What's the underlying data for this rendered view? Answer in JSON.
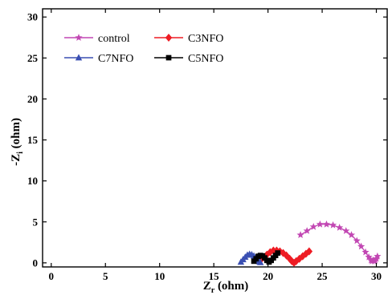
{
  "chart_data": {
    "type": "scatter",
    "title": "",
    "xlabel": "Z",
    "xlabel_sub": "r",
    "xlabel_unit": " (ohm)",
    "ylabel": "-Z",
    "ylabel_sub": "i",
    "ylabel_unit": " (ohm)",
    "xlim": [
      -0.8,
      31
    ],
    "ylim": [
      -0.5,
      31
    ],
    "xticks": [
      0,
      5,
      10,
      15,
      20,
      25,
      30
    ],
    "yticks": [
      0,
      5,
      10,
      15,
      20,
      25,
      30
    ],
    "grid": false,
    "legend_position": "top-left",
    "series": [
      {
        "name": "control",
        "color": "#c247b3",
        "marker": "star",
        "x": [
          23.0,
          23.6,
          24.2,
          24.8,
          25.4,
          26.0,
          26.6,
          27.2,
          27.7,
          28.2,
          28.6,
          29.0,
          29.3,
          29.5,
          29.6,
          29.7,
          29.8,
          29.9,
          30.0,
          30.1
        ],
        "y": [
          3.4,
          3.9,
          4.4,
          4.7,
          4.7,
          4.6,
          4.3,
          3.9,
          3.4,
          2.7,
          2.0,
          1.3,
          0.7,
          0.3,
          0.2,
          0.3,
          0.2,
          0.3,
          0.5,
          0.8
        ]
      },
      {
        "name": "C3NFO",
        "color": "#ee1c24",
        "marker": "diamond",
        "x": [
          19.3,
          19.6,
          19.9,
          20.2,
          20.5,
          20.8,
          21.1,
          21.4,
          21.7,
          22.0,
          22.2,
          22.4,
          22.6,
          22.9,
          23.2,
          23.5,
          23.8
        ],
        "y": [
          0.3,
          0.7,
          1.0,
          1.3,
          1.5,
          1.5,
          1.4,
          1.2,
          0.9,
          0.5,
          0.2,
          0.0,
          0.2,
          0.5,
          0.8,
          1.1,
          1.4
        ]
      },
      {
        "name": "C7NFO",
        "color": "#3a4fb2",
        "marker": "triangle",
        "x": [
          17.5,
          17.7,
          17.9,
          18.1,
          18.3,
          18.5,
          18.7,
          18.9,
          19.1,
          19.2,
          19.3
        ],
        "y": [
          0.1,
          0.4,
          0.7,
          0.95,
          1.05,
          1.0,
          0.85,
          0.6,
          0.35,
          0.15,
          0.05
        ]
      },
      {
        "name": "C5NFO",
        "color": "#000000",
        "marker": "square",
        "x": [
          18.7,
          18.9,
          19.1,
          19.3,
          19.5,
          19.7,
          19.9,
          20.1,
          20.3,
          20.5,
          20.7,
          20.9
        ],
        "y": [
          0.2,
          0.5,
          0.8,
          0.9,
          0.85,
          0.6,
          0.3,
          0.1,
          0.3,
          0.6,
          0.9,
          1.2
        ]
      }
    ]
  }
}
